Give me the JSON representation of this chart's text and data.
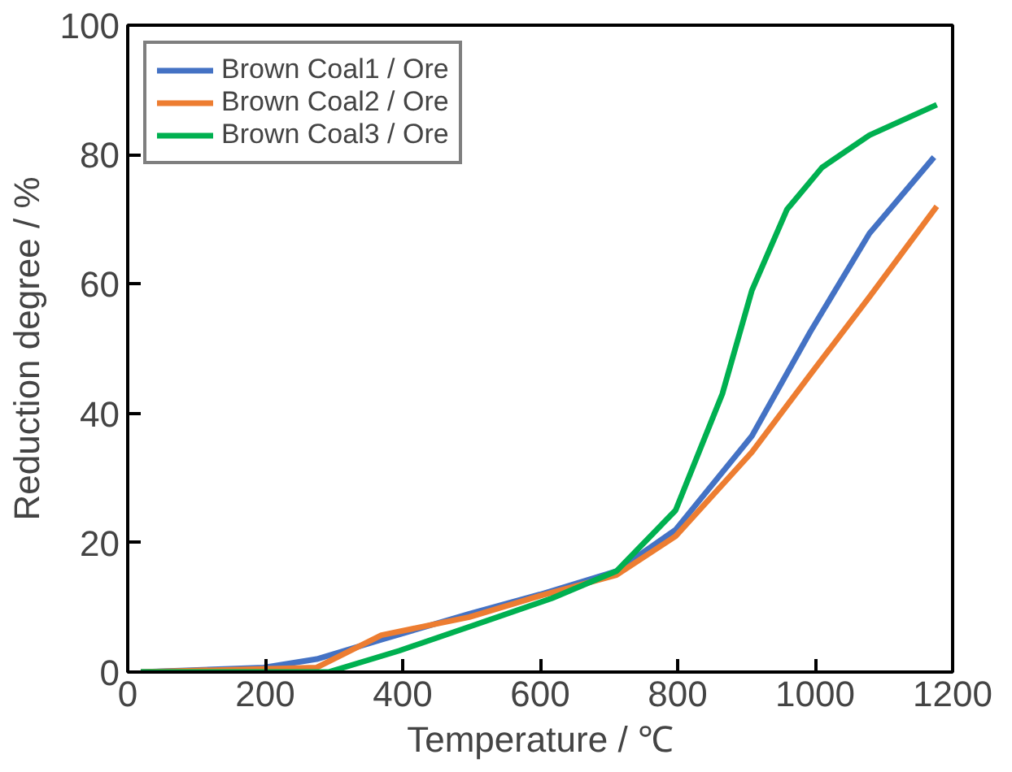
{
  "chart_data": {
    "type": "line",
    "xlabel": "Temperature / ℃",
    "ylabel": "Reduction degree / %",
    "xlim": [
      0,
      1200
    ],
    "ylim": [
      0,
      100
    ],
    "xticks": [
      0,
      200,
      400,
      600,
      800,
      1000,
      1200
    ],
    "yticks": [
      0,
      20,
      40,
      60,
      80,
      100
    ],
    "grid": false,
    "legend": "top left",
    "marker": "none",
    "line_style": "solid",
    "series": [
      {
        "name": "Brown Coal1 / Ore",
        "color": "#4472c4",
        "x": [
          19,
          198,
          275,
          369,
          497,
          600,
          711,
          797,
          908,
          993,
          1079,
          1173
        ],
        "values": [
          0,
          0.7,
          2,
          5,
          9,
          12,
          15.6,
          22,
          36.5,
          52.6,
          67.8,
          79.6
        ]
      },
      {
        "name": "Brown Coal2 / Ore",
        "color": "#ed7d31",
        "x": [
          19,
          275,
          369,
          497,
          600,
          711,
          797,
          908,
          993,
          1079,
          1177
        ],
        "values": [
          0,
          0.7,
          5.7,
          8.5,
          11.8,
          15,
          21,
          34,
          46,
          58,
          72
        ]
      },
      {
        "name": "Brown Coal3 / Ore",
        "color": "#00b050",
        "x": [
          19,
          292,
          395,
          497,
          617,
          711,
          797,
          865,
          908,
          959,
          1010,
          1079,
          1177
        ],
        "values": [
          0,
          0,
          3.3,
          7,
          11.4,
          15.6,
          25,
          43,
          59,
          71.5,
          78,
          83,
          87.7
        ]
      }
    ]
  }
}
